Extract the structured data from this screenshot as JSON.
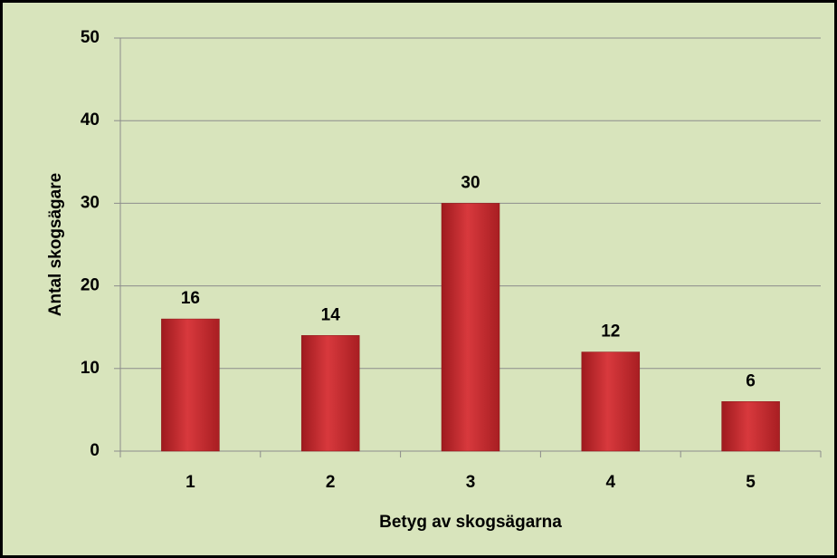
{
  "chart_data": {
    "type": "bar",
    "x_label": "Betyg av skogsägarna",
    "y_label": "Antal skogsägare",
    "categories": [
      "1",
      "2",
      "3",
      "4",
      "5"
    ],
    "values": [
      16,
      14,
      30,
      12,
      6
    ],
    "color": "#c8282c",
    "ylim": [
      0,
      50
    ],
    "yticks": [
      0,
      10,
      20,
      30,
      40,
      50
    ],
    "grid": true
  }
}
